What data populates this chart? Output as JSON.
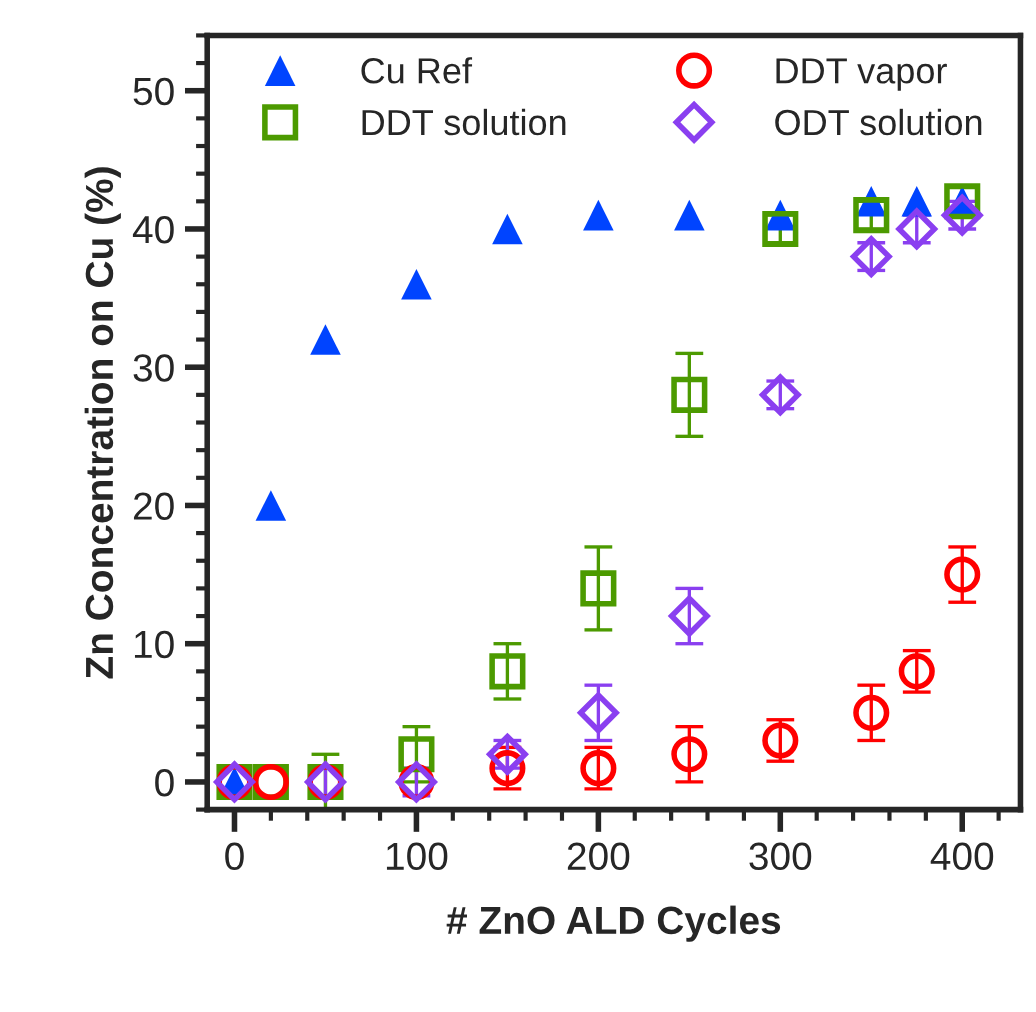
{
  "chart_data": {
    "type": "scatter",
    "xlabel": "# ZnO ALD Cycles",
    "ylabel": "Zn Concentration on Cu (%)",
    "xlim": [
      -15,
      432
    ],
    "ylim": [
      -2,
      54
    ],
    "xticks": [
      0,
      100,
      200,
      300,
      400
    ],
    "yticks": [
      0,
      10,
      20,
      30,
      40,
      50
    ],
    "grid": false,
    "legend": "top",
    "series": [
      {
        "name": "Cu Ref",
        "color": "#0044ff",
        "marker": "triangle",
        "x": [
          0,
          20,
          50,
          100,
          150,
          200,
          250,
          300,
          350,
          375,
          400
        ],
        "values": [
          0,
          20,
          32,
          36,
          40,
          41,
          41,
          41,
          42,
          42,
          42
        ]
      },
      {
        "name": "DDT solution",
        "color": "#4c9a00",
        "marker": "square",
        "x": [
          0,
          20,
          50,
          100,
          150,
          200,
          250,
          300,
          350,
          400
        ],
        "values": [
          0,
          0,
          0,
          2,
          8,
          14,
          28,
          40,
          41,
          42
        ],
        "errors": [
          null,
          null,
          2,
          2,
          2,
          3,
          3,
          1,
          1,
          1
        ]
      },
      {
        "name": "DDT vapor",
        "color": "#ff0000",
        "marker": "circle",
        "x": [
          0,
          20,
          50,
          100,
          150,
          200,
          250,
          300,
          350,
          375,
          400
        ],
        "values": [
          0,
          0,
          0,
          0,
          1,
          1,
          2,
          3,
          5,
          8,
          15
        ],
        "errors": [
          null,
          null,
          null,
          null,
          1.5,
          1.5,
          2,
          1.5,
          2,
          1.5,
          2
        ]
      },
      {
        "name": "ODT solution",
        "color": "#8a3ff0",
        "marker": "diamond",
        "x": [
          0,
          50,
          100,
          150,
          200,
          250,
          300,
          350,
          375,
          400
        ],
        "values": [
          0,
          0,
          0,
          2,
          5,
          12,
          28,
          38,
          40,
          41
        ],
        "errors": [
          null,
          1,
          1,
          1,
          2,
          2,
          1,
          1,
          1,
          1
        ]
      }
    ]
  }
}
